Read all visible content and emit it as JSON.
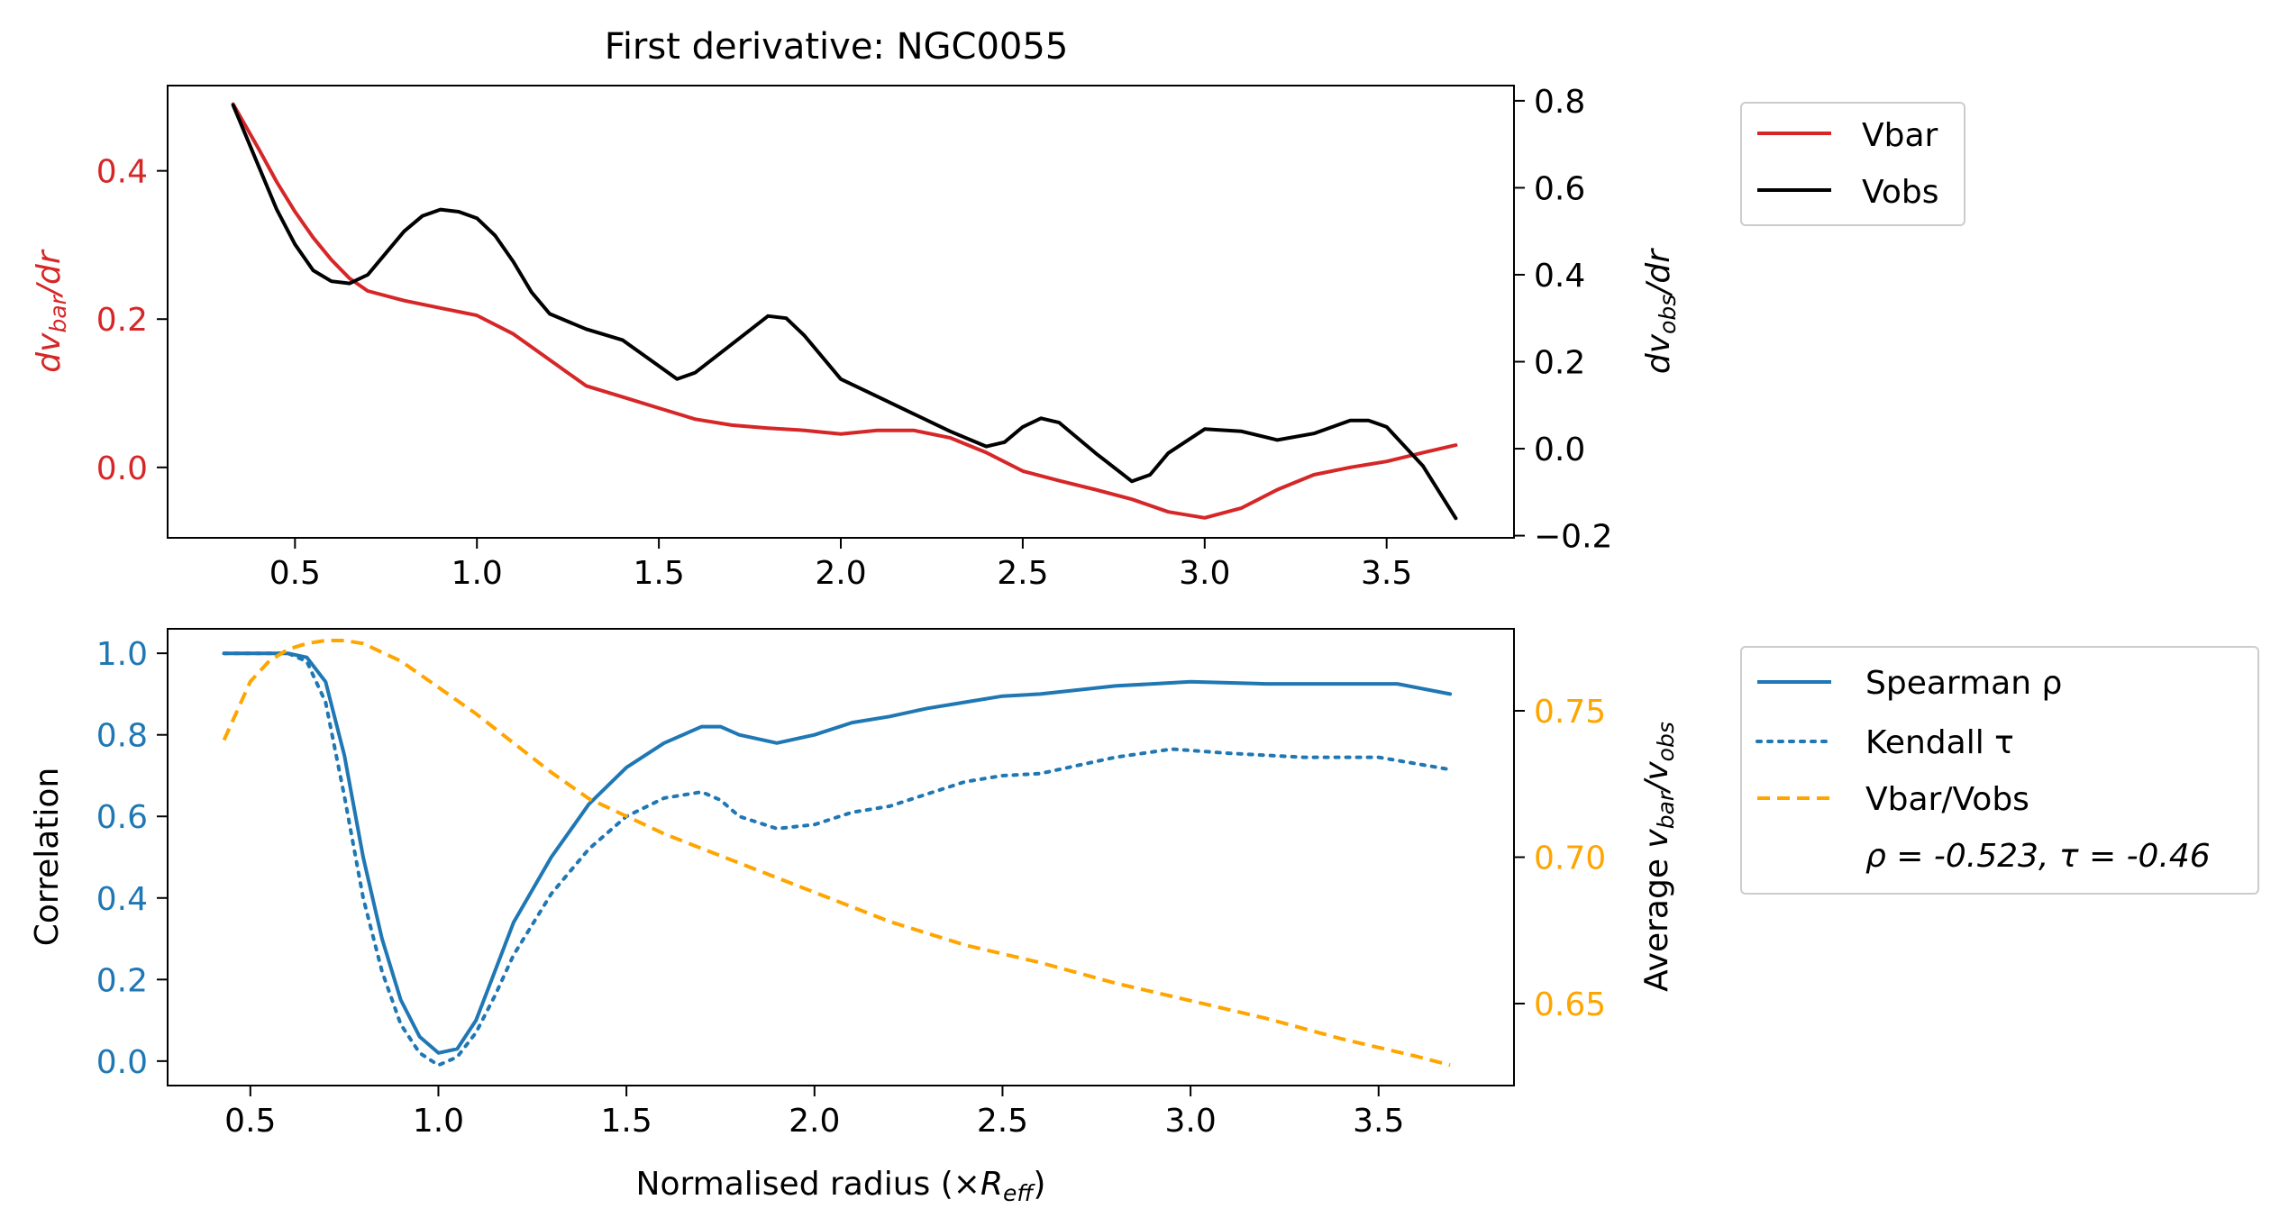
{
  "chart_data": [
    {
      "type": "line",
      "title": "First derivative: NGC0055",
      "xlabel": "",
      "xlim": [
        0.15,
        3.85
      ],
      "xticks": [
        0.5,
        1.0,
        1.5,
        2.0,
        2.5,
        3.0,
        3.5
      ],
      "xtick_labels": [
        "0.5",
        "1.0",
        "1.5",
        "2.0",
        "2.5",
        "3.0",
        "3.5"
      ],
      "ylabel_left": "dv_bar/dr",
      "ylabel_left_parts": {
        "a": "dv",
        "sub": "bar",
        "b": "/dr"
      },
      "ylim_left": [
        -0.095,
        0.515
      ],
      "yticks_left": [
        0.0,
        0.2,
        0.4
      ],
      "ytick_labels_left": [
        "0.0",
        "0.2",
        "0.4"
      ],
      "ylabel_right": "dv_obs/dr",
      "ylabel_right_parts": {
        "a": "dv",
        "sub": "obs",
        "b": "/dr"
      },
      "ylim_right": [
        -0.205,
        0.835
      ],
      "yticks_right": [
        -0.2,
        0.0,
        0.2,
        0.4,
        0.6,
        0.8
      ],
      "ytick_labels_right": [
        "−0.2",
        "0.0",
        "0.2",
        "0.4",
        "0.6",
        "0.8"
      ],
      "legend_position": "outside-upper-right",
      "series": [
        {
          "name": "Vbar",
          "axis": "left",
          "color": "#d62728",
          "style": "solid",
          "x": [
            0.33,
            0.4,
            0.45,
            0.5,
            0.55,
            0.6,
            0.65,
            0.7,
            0.8,
            0.9,
            1.0,
            1.1,
            1.2,
            1.3,
            1.4,
            1.5,
            1.6,
            1.7,
            1.8,
            1.9,
            2.0,
            2.1,
            2.2,
            2.3,
            2.4,
            2.5,
            2.6,
            2.7,
            2.8,
            2.9,
            3.0,
            3.1,
            3.2,
            3.3,
            3.4,
            3.5,
            3.6,
            3.69
          ],
          "y": [
            0.49,
            0.43,
            0.385,
            0.345,
            0.31,
            0.28,
            0.255,
            0.238,
            0.225,
            0.215,
            0.205,
            0.18,
            0.145,
            0.11,
            0.095,
            0.08,
            0.065,
            0.057,
            0.053,
            0.05,
            0.045,
            0.05,
            0.05,
            0.04,
            0.02,
            -0.005,
            -0.018,
            -0.03,
            -0.043,
            -0.06,
            -0.068,
            -0.055,
            -0.03,
            -0.01,
            0.0,
            0.008,
            0.02,
            0.03
          ]
        },
        {
          "name": "Vobs",
          "axis": "right",
          "color": "#000000",
          "style": "solid",
          "x": [
            0.33,
            0.4,
            0.45,
            0.5,
            0.55,
            0.6,
            0.65,
            0.7,
            0.75,
            0.8,
            0.85,
            0.9,
            0.95,
            1.0,
            1.05,
            1.1,
            1.15,
            1.2,
            1.3,
            1.4,
            1.5,
            1.55,
            1.6,
            1.7,
            1.8,
            1.85,
            1.9,
            2.0,
            2.1,
            2.2,
            2.3,
            2.4,
            2.45,
            2.5,
            2.55,
            2.6,
            2.7,
            2.8,
            2.85,
            2.9,
            3.0,
            3.1,
            3.2,
            3.3,
            3.4,
            3.45,
            3.5,
            3.6,
            3.69
          ],
          "y": [
            0.79,
            0.65,
            0.55,
            0.47,
            0.41,
            0.385,
            0.38,
            0.4,
            0.45,
            0.5,
            0.535,
            0.55,
            0.545,
            0.53,
            0.49,
            0.43,
            0.36,
            0.31,
            0.275,
            0.25,
            0.19,
            0.16,
            0.175,
            0.24,
            0.305,
            0.3,
            0.26,
            0.16,
            0.12,
            0.08,
            0.04,
            0.005,
            0.015,
            0.05,
            0.07,
            0.06,
            -0.01,
            -0.075,
            -0.06,
            -0.01,
            0.045,
            0.04,
            0.02,
            0.035,
            0.065,
            0.065,
            0.05,
            -0.04,
            -0.16
          ]
        }
      ]
    },
    {
      "type": "line",
      "title": "",
      "xlabel": "Normalised radius (×R_eff)",
      "xlabel_parts": {
        "a": "Normalised radius (×",
        "ital": "R",
        "sub": "eff",
        "b": ")"
      },
      "xlim": [
        0.28,
        3.86
      ],
      "xticks": [
        0.5,
        1.0,
        1.5,
        2.0,
        2.5,
        3.0,
        3.5
      ],
      "xtick_labels": [
        "0.5",
        "1.0",
        "1.5",
        "2.0",
        "2.5",
        "3.0",
        "3.5"
      ],
      "ylabel_left": "Correlation",
      "ylim_left": [
        -0.06,
        1.06
      ],
      "yticks_left": [
        0.0,
        0.2,
        0.4,
        0.6,
        0.8,
        1.0
      ],
      "ytick_labels_left": [
        "0.0",
        "0.2",
        "0.4",
        "0.6",
        "0.8",
        "1.0"
      ],
      "ylabel_right": "Average v_bar/v_obs",
      "ylabel_right_parts": {
        "a": "Average ",
        "v1": "v",
        "sub1": "bar",
        "mid": "/",
        "v2": "v",
        "sub2": "obs"
      },
      "ylim_right": [
        0.622,
        0.778
      ],
      "yticks_right": [
        0.65,
        0.7,
        0.75
      ],
      "ytick_labels_right": [
        "0.65",
        "0.70",
        "0.75"
      ],
      "legend_position": "outside-upper-right",
      "legend_extra": "ρ = -0.523, τ = -0.46",
      "series": [
        {
          "name": "Spearman ρ",
          "axis": "left",
          "color": "#1f77b4",
          "style": "solid",
          "x": [
            0.43,
            0.5,
            0.55,
            0.6,
            0.65,
            0.7,
            0.75,
            0.8,
            0.85,
            0.9,
            0.95,
            1.0,
            1.05,
            1.1,
            1.15,
            1.2,
            1.3,
            1.4,
            1.5,
            1.6,
            1.7,
            1.75,
            1.8,
            1.9,
            2.0,
            2.1,
            2.2,
            2.3,
            2.4,
            2.5,
            2.6,
            2.8,
            3.0,
            3.2,
            3.4,
            3.55,
            3.69
          ],
          "y": [
            1.0,
            1.0,
            1.0,
            1.0,
            0.99,
            0.93,
            0.75,
            0.5,
            0.3,
            0.15,
            0.06,
            0.02,
            0.03,
            0.1,
            0.22,
            0.34,
            0.5,
            0.63,
            0.72,
            0.78,
            0.82,
            0.82,
            0.8,
            0.78,
            0.8,
            0.83,
            0.845,
            0.865,
            0.88,
            0.895,
            0.9,
            0.92,
            0.93,
            0.925,
            0.925,
            0.925,
            0.9
          ]
        },
        {
          "name": "Kendall τ",
          "axis": "left",
          "color": "#1f77b4",
          "style": "dotted",
          "x": [
            0.43,
            0.5,
            0.6,
            0.65,
            0.7,
            0.75,
            0.8,
            0.85,
            0.9,
            0.95,
            1.0,
            1.05,
            1.1,
            1.15,
            1.2,
            1.3,
            1.4,
            1.5,
            1.6,
            1.7,
            1.75,
            1.8,
            1.9,
            2.0,
            2.1,
            2.2,
            2.3,
            2.4,
            2.5,
            2.6,
            2.8,
            2.95,
            3.1,
            3.3,
            3.5,
            3.69
          ],
          "y": [
            1.0,
            1.0,
            1.0,
            0.98,
            0.88,
            0.65,
            0.4,
            0.22,
            0.09,
            0.02,
            -0.01,
            0.01,
            0.07,
            0.16,
            0.26,
            0.41,
            0.52,
            0.6,
            0.645,
            0.66,
            0.64,
            0.6,
            0.57,
            0.58,
            0.61,
            0.625,
            0.655,
            0.685,
            0.7,
            0.705,
            0.745,
            0.765,
            0.755,
            0.745,
            0.745,
            0.715
          ]
        },
        {
          "name": "Vbar/Vobs",
          "axis": "right",
          "color": "#ffa500",
          "style": "dashed",
          "x": [
            0.43,
            0.5,
            0.55,
            0.6,
            0.65,
            0.7,
            0.75,
            0.8,
            0.9,
            1.0,
            1.1,
            1.2,
            1.3,
            1.4,
            1.5,
            1.6,
            1.7,
            1.8,
            1.9,
            2.0,
            2.2,
            2.4,
            2.6,
            2.8,
            3.0,
            3.2,
            3.4,
            3.6,
            3.69
          ],
          "y": [
            0.74,
            0.76,
            0.767,
            0.771,
            0.773,
            0.774,
            0.774,
            0.773,
            0.767,
            0.758,
            0.749,
            0.739,
            0.729,
            0.72,
            0.714,
            0.708,
            0.703,
            0.698,
            0.693,
            0.688,
            0.678,
            0.67,
            0.664,
            0.657,
            0.651,
            0.645,
            0.638,
            0.632,
            0.629
          ]
        }
      ]
    }
  ]
}
